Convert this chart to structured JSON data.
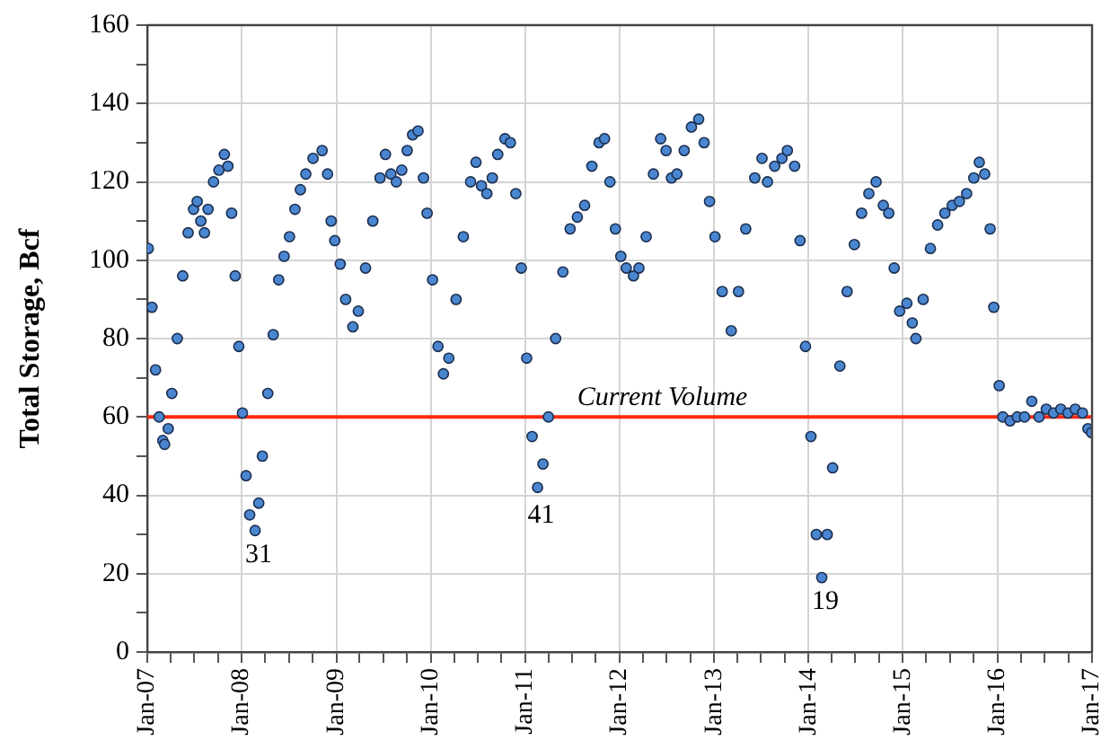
{
  "chart_data": {
    "type": "scatter",
    "ylabel": "Total Storage, Bcf",
    "grid": true,
    "marker": "circle",
    "color": "#4a86d0",
    "xlim": [
      "2007-01",
      "2017-01"
    ],
    "xticks": [
      {
        "value": "2007-01",
        "label": "Jan-07"
      },
      {
        "value": "2007-04",
        "label": null
      },
      {
        "value": "2007-07",
        "label": null
      },
      {
        "value": "2007-10",
        "label": null
      },
      {
        "value": "2008-01",
        "label": "Jan-08"
      },
      {
        "value": "2008-04",
        "label": null
      },
      {
        "value": "2008-07",
        "label": null
      },
      {
        "value": "2008-10",
        "label": null
      },
      {
        "value": "2009-01",
        "label": "Jan-09"
      },
      {
        "value": "2009-04",
        "label": null
      },
      {
        "value": "2009-07",
        "label": null
      },
      {
        "value": "2009-10",
        "label": null
      },
      {
        "value": "2010-01",
        "label": "Jan-10"
      },
      {
        "value": "2010-04",
        "label": null
      },
      {
        "value": "2010-07",
        "label": null
      },
      {
        "value": "2010-10",
        "label": null
      },
      {
        "value": "2011-01",
        "label": "Jan-11"
      },
      {
        "value": "2011-04",
        "label": null
      },
      {
        "value": "2011-07",
        "label": null
      },
      {
        "value": "2011-10",
        "label": null
      },
      {
        "value": "2012-01",
        "label": "Jan-12"
      },
      {
        "value": "2012-04",
        "label": null
      },
      {
        "value": "2012-07",
        "label": null
      },
      {
        "value": "2012-10",
        "label": null
      },
      {
        "value": "2013-01",
        "label": "Jan-13"
      },
      {
        "value": "2013-04",
        "label": null
      },
      {
        "value": "2013-07",
        "label": null
      },
      {
        "value": "2013-10",
        "label": null
      },
      {
        "value": "2014-01",
        "label": "Jan-14"
      },
      {
        "value": "2014-04",
        "label": null
      },
      {
        "value": "2014-07",
        "label": null
      },
      {
        "value": "2014-10",
        "label": null
      },
      {
        "value": "2015-01",
        "label": "Jan-15"
      },
      {
        "value": "2015-04",
        "label": null
      },
      {
        "value": "2015-07",
        "label": null
      },
      {
        "value": "2015-10",
        "label": null
      },
      {
        "value": "2016-01",
        "label": "Jan-16"
      },
      {
        "value": "2016-04",
        "label": null
      },
      {
        "value": "2016-07",
        "label": null
      },
      {
        "value": "2016-10",
        "label": null
      },
      {
        "value": "2017-01",
        "label": "Jan-17"
      }
    ],
    "ylim": [
      0,
      160
    ],
    "yticks": [
      0,
      {
        "value": 10,
        "label": null
      },
      20,
      {
        "value": 30,
        "label": null
      },
      40,
      {
        "value": 50,
        "label": null
      },
      60,
      {
        "value": 70,
        "label": null
      },
      80,
      {
        "value": 90,
        "label": null
      },
      100,
      {
        "value": 110,
        "label": null
      },
      120,
      {
        "value": 130,
        "label": null
      },
      140,
      {
        "value": 150,
        "label": null
      },
      160
    ],
    "x": [
      "2007-01-05",
      "2007-01-19",
      "2007-02-02",
      "2007-02-16",
      "2007-03-02",
      "2007-03-09",
      "2007-03-23",
      "2007-04-06",
      "2007-04-27",
      "2007-05-18",
      "2007-06-08",
      "2007-06-29",
      "2007-07-13",
      "2007-07-27",
      "2007-08-10",
      "2007-08-24",
      "2007-09-14",
      "2007-10-05",
      "2007-10-26",
      "2007-11-09",
      "2007-11-23",
      "2007-12-07",
      "2007-12-21",
      "2008-01-04",
      "2008-01-18",
      "2008-02-01",
      "2008-02-22",
      "2008-03-07",
      "2008-03-21",
      "2008-04-11",
      "2008-05-02",
      "2008-05-23",
      "2008-06-13",
      "2008-07-04",
      "2008-07-25",
      "2008-08-15",
      "2008-09-05",
      "2008-10-03",
      "2008-11-07",
      "2008-11-28",
      "2008-12-12",
      "2008-12-26",
      "2009-01-16",
      "2009-02-06",
      "2009-03-06",
      "2009-03-27",
      "2009-04-24",
      "2009-05-22",
      "2009-06-19",
      "2009-07-10",
      "2009-07-31",
      "2009-08-21",
      "2009-09-11",
      "2009-10-02",
      "2009-10-23",
      "2009-11-13",
      "2009-12-04",
      "2009-12-18",
      "2010-01-08",
      "2010-01-29",
      "2010-02-19",
      "2010-03-12",
      "2010-04-09",
      "2010-05-07",
      "2010-06-04",
      "2010-06-25",
      "2010-07-16",
      "2010-08-06",
      "2010-08-27",
      "2010-09-17",
      "2010-10-15",
      "2010-11-05",
      "2010-11-26",
      "2010-12-17",
      "2011-01-07",
      "2011-01-28",
      "2011-02-18",
      "2011-03-11",
      "2011-04-01",
      "2011-04-29",
      "2011-05-27",
      "2011-06-24",
      "2011-07-22",
      "2011-08-19",
      "2011-09-16",
      "2011-10-14",
      "2011-11-04",
      "2011-11-25",
      "2011-12-16",
      "2012-01-06",
      "2012-01-27",
      "2012-02-24",
      "2012-03-16",
      "2012-04-13",
      "2012-05-11",
      "2012-06-08",
      "2012-06-29",
      "2012-07-20",
      "2012-08-10",
      "2012-09-07",
      "2012-10-05",
      "2012-11-02",
      "2012-11-23",
      "2012-12-14",
      "2013-01-04",
      "2013-02-01",
      "2013-03-08",
      "2013-04-05",
      "2013-05-03",
      "2013-06-07",
      "2013-07-05",
      "2013-07-26",
      "2013-08-23",
      "2013-09-20",
      "2013-10-11",
      "2013-11-08",
      "2013-11-29",
      "2013-12-20",
      "2014-01-10",
      "2014-01-31",
      "2014-02-21",
      "2014-03-14",
      "2014-04-04",
      "2014-05-02",
      "2014-05-30",
      "2014-06-27",
      "2014-07-25",
      "2014-08-22",
      "2014-09-19",
      "2014-10-17",
      "2014-11-07",
      "2014-11-28",
      "2014-12-19",
      "2015-01-16",
      "2015-02-06",
      "2015-02-20",
      "2015-03-20",
      "2015-04-17",
      "2015-05-15",
      "2015-06-12",
      "2015-07-10",
      "2015-08-07",
      "2015-09-04",
      "2015-10-02",
      "2015-10-23",
      "2015-11-13",
      "2015-12-04",
      "2015-12-18",
      "2016-01-08",
      "2016-01-22",
      "2016-02-19",
      "2016-03-18",
      "2016-04-15",
      "2016-05-13",
      "2016-06-10",
      "2016-07-08",
      "2016-08-05",
      "2016-09-02",
      "2016-09-30",
      "2016-10-28",
      "2016-11-25",
      "2016-12-16",
      "2016-12-30"
    ],
    "values": [
      103,
      88,
      72,
      60,
      54,
      53,
      57,
      66,
      80,
      96,
      107,
      113,
      115,
      110,
      107,
      113,
      120,
      123,
      127,
      124,
      112,
      96,
      78,
      61,
      45,
      35,
      31,
      38,
      50,
      66,
      81,
      95,
      101,
      106,
      113,
      118,
      122,
      126,
      128,
      122,
      110,
      105,
      99,
      90,
      83,
      87,
      98,
      110,
      121,
      127,
      122,
      120,
      123,
      128,
      132,
      133,
      121,
      112,
      95,
      78,
      71,
      75,
      90,
      106,
      120,
      125,
      119,
      117,
      121,
      127,
      131,
      130,
      117,
      98,
      75,
      55,
      42,
      48,
      60,
      80,
      97,
      108,
      111,
      114,
      124,
      130,
      131,
      120,
      108,
      101,
      98,
      96,
      98,
      106,
      122,
      131,
      128,
      121,
      122,
      128,
      134,
      136,
      130,
      115,
      106,
      92,
      82,
      92,
      108,
      121,
      126,
      120,
      124,
      126,
      128,
      124,
      105,
      78,
      55,
      30,
      19,
      30,
      47,
      73,
      92,
      104,
      112,
      117,
      120,
      114,
      112,
      98,
      87,
      89,
      84,
      80,
      90,
      103,
      109,
      112,
      114,
      115,
      117,
      121,
      125,
      122,
      108,
      88,
      68,
      60,
      59,
      60,
      60,
      64,
      60,
      62,
      61,
      62,
      61,
      62,
      61,
      57,
      56
    ],
    "ref_lines": [
      {
        "axis": "y",
        "value": 60,
        "label": "Current Volume",
        "color": "#ff2a12"
      }
    ],
    "annotations": [
      {
        "text": "31",
        "x": "2008-02-22",
        "y": 31
      },
      {
        "text": "41",
        "x": "2011-02-18",
        "y": 41
      },
      {
        "text": "19",
        "x": "2014-02-21",
        "y": 19
      }
    ]
  }
}
